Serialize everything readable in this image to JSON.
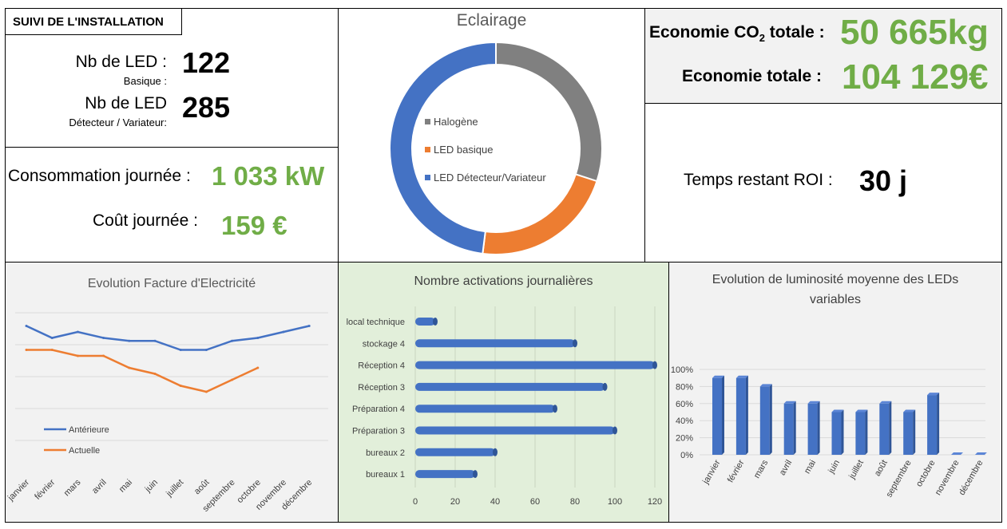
{
  "installation": {
    "title": "SUIVI DE L'INSTALLATION",
    "led_basic_label": "Nb de LED :",
    "led_basic_sub": "Basique :",
    "led_basic_value": "122",
    "led_detect_label": "Nb de LED",
    "led_detect_sub": "Détecteur / Variateur:",
    "led_detect_value": "285"
  },
  "consumption": {
    "day_label": "Consommation journée :",
    "day_value": "1 033 kW",
    "cost_label": "Coût journée :",
    "cost_value": "159 €"
  },
  "savings": {
    "co2_label_main": "Economie CO",
    "co2_label_sub": "2",
    "co2_label_end": " totale :",
    "co2_value": "50 665kg",
    "total_label": "Economie totale :",
    "total_value": "104 129€"
  },
  "roi": {
    "label": "Temps restant ROI :",
    "value": "30 j"
  },
  "chart_data": [
    {
      "type": "pie",
      "title": "Eclairage",
      "donut": true,
      "categories": [
        "Halogène",
        "LED basique",
        "LED Détecteur/Variateur"
      ],
      "values": [
        30,
        22,
        48
      ],
      "colors": [
        "#808080",
        "#ed7d31",
        "#4472c4"
      ],
      "legend": "inside"
    },
    {
      "type": "line",
      "title": "Evolution Facture d'Electricité",
      "categories": [
        "janvier",
        "février",
        "mars",
        "avril",
        "mai",
        "juin",
        "juillet",
        "août",
        "septembre",
        "octobre",
        "novembre",
        "décembre"
      ],
      "series": [
        {
          "name": "Antérieure",
          "color": "#4472c4",
          "values": [
            100,
            96,
            98,
            96,
            95,
            95,
            92,
            92,
            95,
            96,
            98,
            100
          ]
        },
        {
          "name": "Actuelle",
          "color": "#ed7d31",
          "values": [
            92,
            92,
            90,
            90,
            86,
            84,
            80,
            78,
            82,
            86,
            null,
            null
          ]
        }
      ],
      "ylim": [
        62,
        110
      ],
      "grid": true,
      "legend": "left"
    },
    {
      "type": "bar",
      "orientation": "horizontal",
      "title": "Nombre activations journalières",
      "categories": [
        "local technique",
        "stockage 4",
        "Réception 4",
        "Réception 3",
        "Préparation 4",
        "Préparation 3",
        "bureaux 2",
        "bureaux 1"
      ],
      "values": [
        10,
        80,
        120,
        95,
        70,
        100,
        40,
        30
      ],
      "xlim": [
        0,
        120
      ],
      "xticks": [
        "0",
        "20",
        "40",
        "60",
        "80",
        "100",
        "120"
      ],
      "color": "#4472c4",
      "grid": true
    },
    {
      "type": "bar",
      "title": "Evolution de luminosité moyenne des LEDs variables",
      "categories": [
        "janvier",
        "février",
        "mars",
        "avril",
        "mai",
        "juin",
        "juillet",
        "août",
        "septembre",
        "octobre",
        "novembre",
        "décembre"
      ],
      "values": [
        90,
        90,
        80,
        60,
        60,
        50,
        50,
        60,
        50,
        70,
        0,
        0
      ],
      "ylim": [
        0,
        100
      ],
      "yticks": [
        "0%",
        "20%",
        "40%",
        "60%",
        "80%",
        "100%"
      ],
      "color": "#4472c4",
      "grid": true
    }
  ]
}
